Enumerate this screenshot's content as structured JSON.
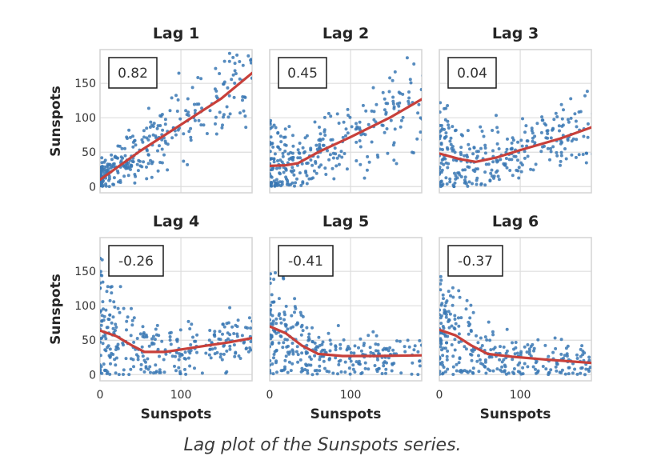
{
  "caption": "Lag plot of the Sunspots series.",
  "colors": {
    "point": "#3a78b4",
    "line": "#c8403a",
    "grid": "#dddddd",
    "axis_text": "#333333"
  },
  "chart_data": {
    "type": "scatter",
    "title": "Lag plot of the Sunspots series.",
    "xlabel": "Sunspots",
    "ylabel": "Sunspots",
    "xlim": [
      0,
      188
    ],
    "ylim": [
      -9,
      199
    ],
    "xticks": [
      0,
      100
    ],
    "yticks": [
      0,
      50,
      100,
      150
    ],
    "grid": true,
    "panels": [
      {
        "title": "Lag 1",
        "corr": "0.82",
        "fit": [
          [
            0,
            10
          ],
          [
            50,
            52
          ],
          [
            100,
            90
          ],
          [
            150,
            128
          ],
          [
            188,
            165
          ]
        ],
        "seed": 11
      },
      {
        "title": "Lag 2",
        "corr": "0.45",
        "fit": [
          [
            0,
            30
          ],
          [
            20,
            31
          ],
          [
            35,
            34
          ],
          [
            60,
            50
          ],
          [
            100,
            72
          ],
          [
            150,
            101
          ],
          [
            188,
            127
          ]
        ],
        "seed": 23
      },
      {
        "title": "Lag 3",
        "corr": "0.04",
        "fit": [
          [
            0,
            48
          ],
          [
            25,
            40
          ],
          [
            45,
            36
          ],
          [
            70,
            42
          ],
          [
            100,
            53
          ],
          [
            150,
            70
          ],
          [
            188,
            86
          ]
        ],
        "seed": 37
      },
      {
        "title": "Lag 4",
        "corr": "-0.26",
        "fit": [
          [
            0,
            64
          ],
          [
            20,
            56
          ],
          [
            40,
            42
          ],
          [
            55,
            33
          ],
          [
            80,
            33
          ],
          [
            120,
            40
          ],
          [
            160,
            47
          ],
          [
            188,
            53
          ]
        ],
        "seed": 41
      },
      {
        "title": "Lag 5",
        "corr": "-0.41",
        "fit": [
          [
            0,
            70
          ],
          [
            20,
            60
          ],
          [
            40,
            42
          ],
          [
            60,
            30
          ],
          [
            90,
            27
          ],
          [
            130,
            27
          ],
          [
            188,
            28
          ]
        ],
        "seed": 53
      },
      {
        "title": "Lag 6",
        "corr": "-0.37",
        "fit": [
          [
            0,
            65
          ],
          [
            20,
            57
          ],
          [
            40,
            42
          ],
          [
            60,
            30
          ],
          [
            90,
            26
          ],
          [
            130,
            22
          ],
          [
            188,
            17
          ]
        ],
        "seed": 67
      }
    ]
  }
}
